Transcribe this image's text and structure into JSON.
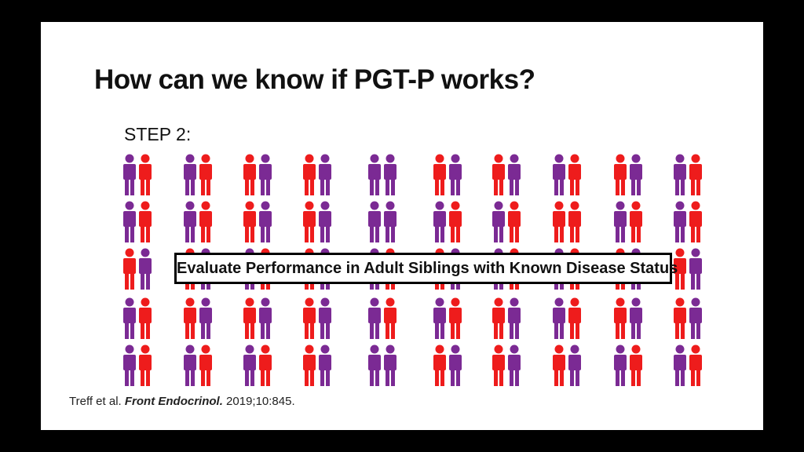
{
  "slide": {
    "title": "How can we know if PGT-P works?",
    "step": "STEP 2:",
    "banner": "Evaluate Performance in Adult Siblings with Known Disease Status",
    "citation": {
      "authors": "Treff et al.",
      "journal": "Front Endocrinol.",
      "details": "2019;10:845."
    }
  }
}
